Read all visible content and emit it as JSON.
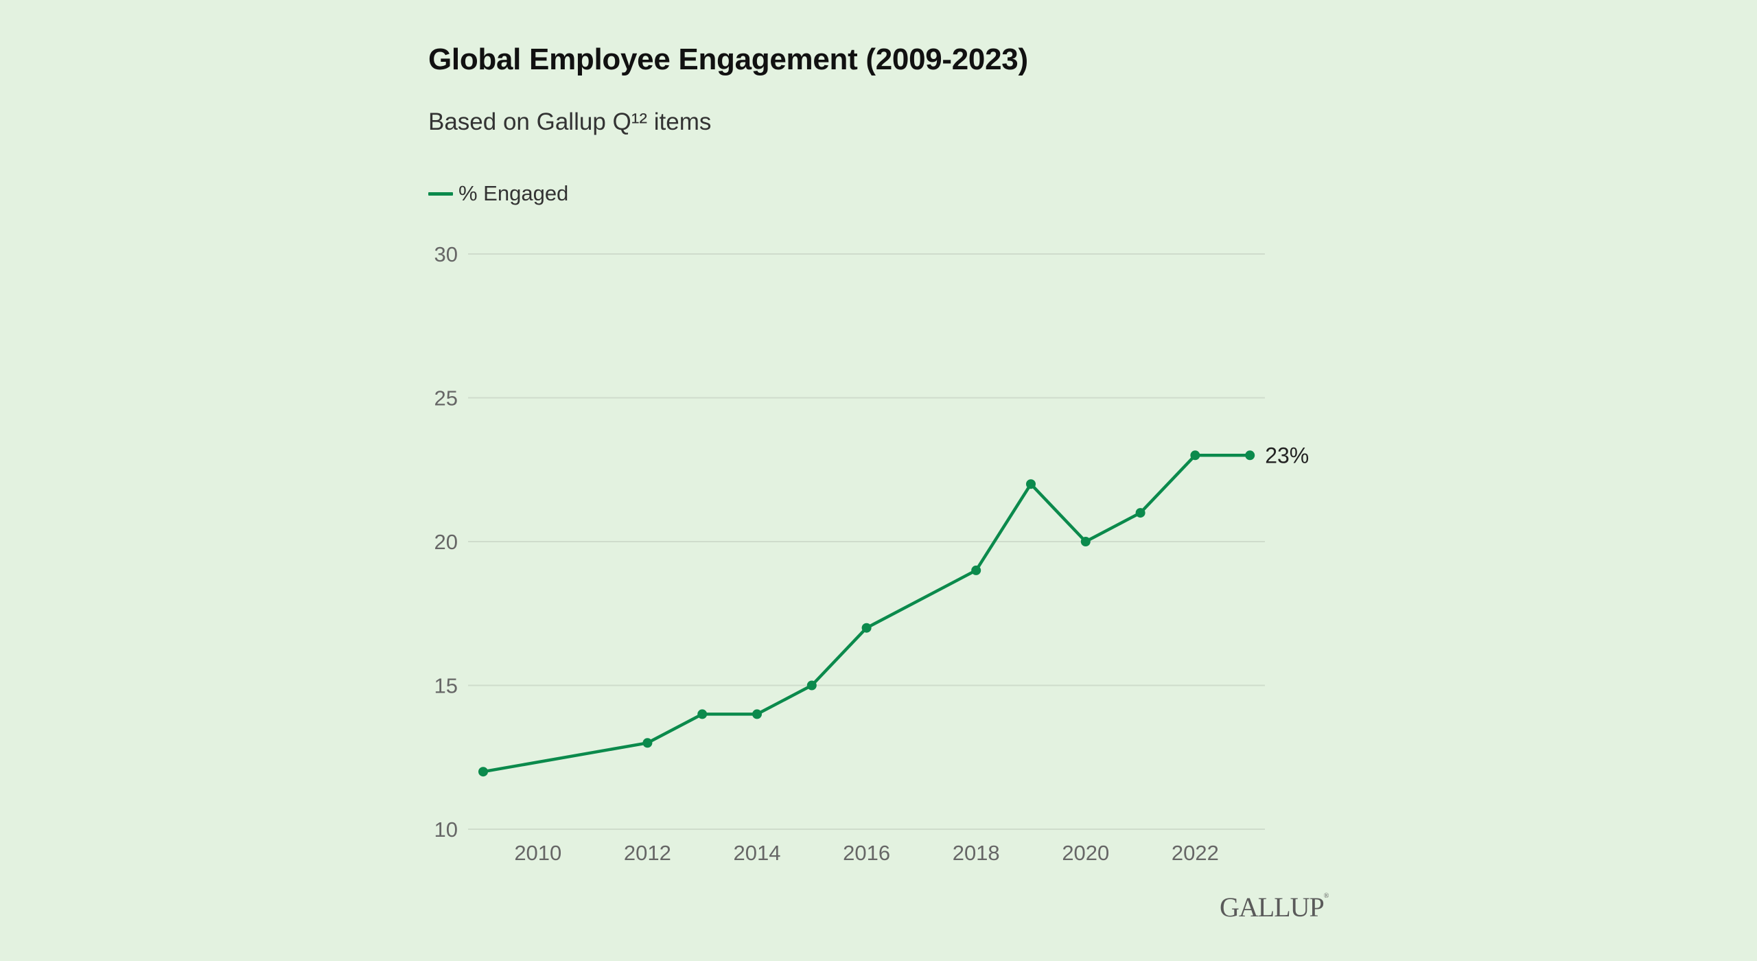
{
  "chart_data": {
    "type": "line",
    "title": "Global Employee Engagement (2009-2023)",
    "subtitle": "Based on Gallup Q¹² items",
    "xlabel": "",
    "ylabel": "",
    "ylim": [
      10,
      30
    ],
    "xlim": [
      2009,
      2023
    ],
    "grid": true,
    "legend_placement": "top-left",
    "y_ticks": [
      10,
      15,
      20,
      25,
      30
    ],
    "x_ticks": [
      2010,
      2012,
      2014,
      2016,
      2018,
      2020,
      2022
    ],
    "series": [
      {
        "name": "% Engaged",
        "color": "#0b8a4c",
        "x": [
          2009,
          2012,
          2013,
          2014,
          2015,
          2016,
          2018,
          2019,
          2020,
          2021,
          2022,
          2023
        ],
        "values": [
          12,
          13,
          14,
          14,
          15,
          17,
          19,
          22,
          20,
          21,
          23,
          23
        ]
      }
    ],
    "annotations": [
      {
        "x": 2023,
        "y": 23,
        "text": "23%"
      }
    ]
  },
  "legend": {
    "label": "% Engaged"
  },
  "source_logo": "GALLUP",
  "colors": {
    "background": "#e3f2e0",
    "line": "#0b8a4c",
    "grid": "#cfdccc"
  }
}
